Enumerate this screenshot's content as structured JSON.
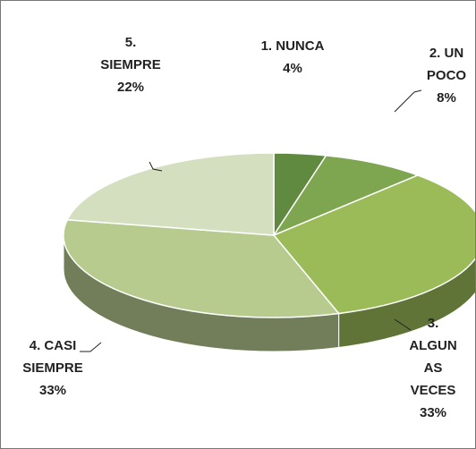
{
  "chart_data": {
    "type": "pie3d",
    "categories": [
      "1. NUNCA",
      "2. UN POCO",
      "3. ALGUNAS VECES",
      "4. CASI SIEMPRE",
      "5. SIEMPRE"
    ],
    "values": [
      4,
      8,
      33,
      33,
      22
    ],
    "value_labels": [
      "4%",
      "8%",
      "33%",
      "33%",
      "22%"
    ],
    "colors": [
      "#5f8a3f",
      "#7ea650",
      "#9bbb59",
      "#b7cb8f",
      "#d3dfbf"
    ]
  }
}
